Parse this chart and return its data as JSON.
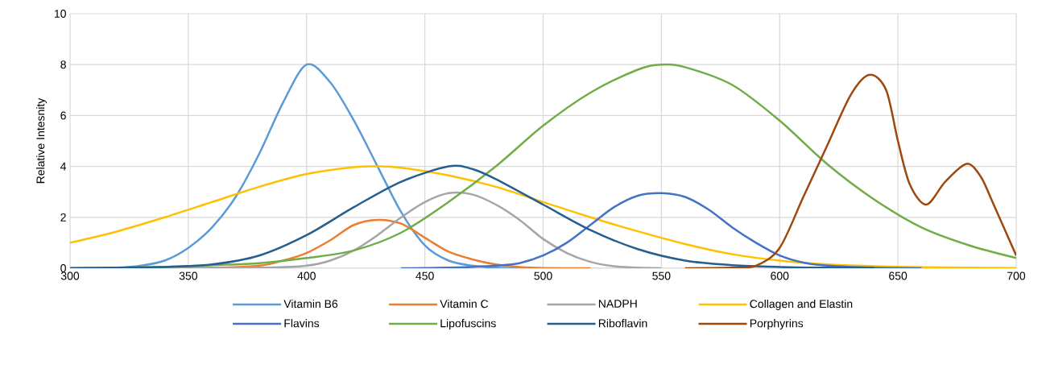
{
  "chart_data": {
    "type": "line",
    "ylabel": "Relative Intesnity",
    "xlim": [
      300,
      700
    ],
    "ylim": [
      0,
      10
    ],
    "xticks": [
      300,
      350,
      400,
      450,
      500,
      550,
      600,
      650,
      700
    ],
    "yticks": [
      0,
      2,
      4,
      6,
      8,
      10
    ],
    "grid": true,
    "legend": "bottom",
    "line_style": "solid",
    "series": [
      {
        "name": "Vitamin B6",
        "color": "#5b9bd5",
        "x": [
          300,
          320,
          330,
          340,
          350,
          360,
          370,
          380,
          390,
          400,
          410,
          420,
          430,
          440,
          450,
          460,
          470,
          480,
          490
        ],
        "values": [
          0,
          0.02,
          0.1,
          0.3,
          0.8,
          1.6,
          2.8,
          4.5,
          6.5,
          8,
          7.3,
          5.8,
          4.0,
          2.2,
          0.9,
          0.3,
          0.1,
          0.02,
          0
        ]
      },
      {
        "name": "Vitamin C",
        "color": "#ed7d31",
        "x": [
          300,
          360,
          380,
          390,
          400,
          410,
          420,
          430,
          440,
          450,
          460,
          470,
          480,
          490,
          500,
          520
        ],
        "values": [
          0,
          0.02,
          0.1,
          0.3,
          0.6,
          1.1,
          1.7,
          1.9,
          1.75,
          1.2,
          0.65,
          0.35,
          0.15,
          0.05,
          0.01,
          0
        ]
      },
      {
        "name": "NADPH",
        "color": "#a5a5a5",
        "x": [
          300,
          380,
          400,
          410,
          420,
          430,
          440,
          450,
          460,
          470,
          480,
          490,
          500,
          510,
          520,
          530,
          540,
          550
        ],
        "values": [
          0,
          0.02,
          0.1,
          0.3,
          0.7,
          1.3,
          2.0,
          2.6,
          2.95,
          2.9,
          2.5,
          1.9,
          1.15,
          0.6,
          0.25,
          0.08,
          0.02,
          0
        ]
      },
      {
        "name": "Collagen and Elastin",
        "color": "#ffc000",
        "x": [
          300,
          320,
          340,
          360,
          380,
          400,
          420,
          430,
          440,
          460,
          480,
          500,
          520,
          540,
          560,
          580,
          600,
          620,
          640,
          660,
          680,
          700
        ],
        "values": [
          1.0,
          1.45,
          2.0,
          2.6,
          3.2,
          3.7,
          3.97,
          4.0,
          3.95,
          3.65,
          3.2,
          2.6,
          2.0,
          1.45,
          0.95,
          0.55,
          0.3,
          0.15,
          0.08,
          0.04,
          0.02,
          0.01
        ]
      },
      {
        "name": "Flavins",
        "color": "#4472c4",
        "x": [
          440,
          460,
          470,
          480,
          490,
          500,
          510,
          520,
          530,
          540,
          550,
          560,
          570,
          580,
          590,
          600,
          610,
          620,
          640,
          660
        ],
        "values": [
          0,
          0.02,
          0.05,
          0.1,
          0.2,
          0.5,
          1.0,
          1.7,
          2.4,
          2.85,
          2.95,
          2.8,
          2.3,
          1.6,
          1.0,
          0.5,
          0.22,
          0.1,
          0.02,
          0
        ]
      },
      {
        "name": "Lipofuscins",
        "color": "#70ad47",
        "x": [
          300,
          340,
          360,
          380,
          400,
          420,
          440,
          460,
          480,
          500,
          520,
          540,
          550,
          560,
          580,
          600,
          620,
          640,
          660,
          680,
          700
        ],
        "values": [
          0,
          0.05,
          0.12,
          0.2,
          0.4,
          0.7,
          1.4,
          2.6,
          4.0,
          5.6,
          6.9,
          7.8,
          8.0,
          7.9,
          7.2,
          5.8,
          4.1,
          2.7,
          1.6,
          0.9,
          0.4
        ]
      },
      {
        "name": "Riboflavin",
        "color": "#255e91",
        "x": [
          300,
          340,
          360,
          380,
          400,
          420,
          440,
          460,
          470,
          480,
          500,
          520,
          540,
          560,
          580,
          600,
          620,
          640
        ],
        "values": [
          0,
          0.05,
          0.15,
          0.5,
          1.3,
          2.4,
          3.4,
          4.0,
          3.9,
          3.5,
          2.5,
          1.5,
          0.75,
          0.3,
          0.12,
          0.05,
          0.02,
          0.01
        ]
      },
      {
        "name": "Porphyrins",
        "color": "#9e480e",
        "x": [
          560,
          580,
          590,
          600,
          610,
          620,
          630,
          638,
          645,
          650,
          655,
          662,
          670,
          679,
          685,
          690,
          700
        ],
        "values": [
          0,
          0.02,
          0.1,
          0.8,
          2.8,
          4.8,
          6.8,
          7.6,
          7.0,
          5.0,
          3.3,
          2.5,
          3.4,
          4.1,
          3.6,
          2.6,
          0.5
        ]
      }
    ]
  }
}
